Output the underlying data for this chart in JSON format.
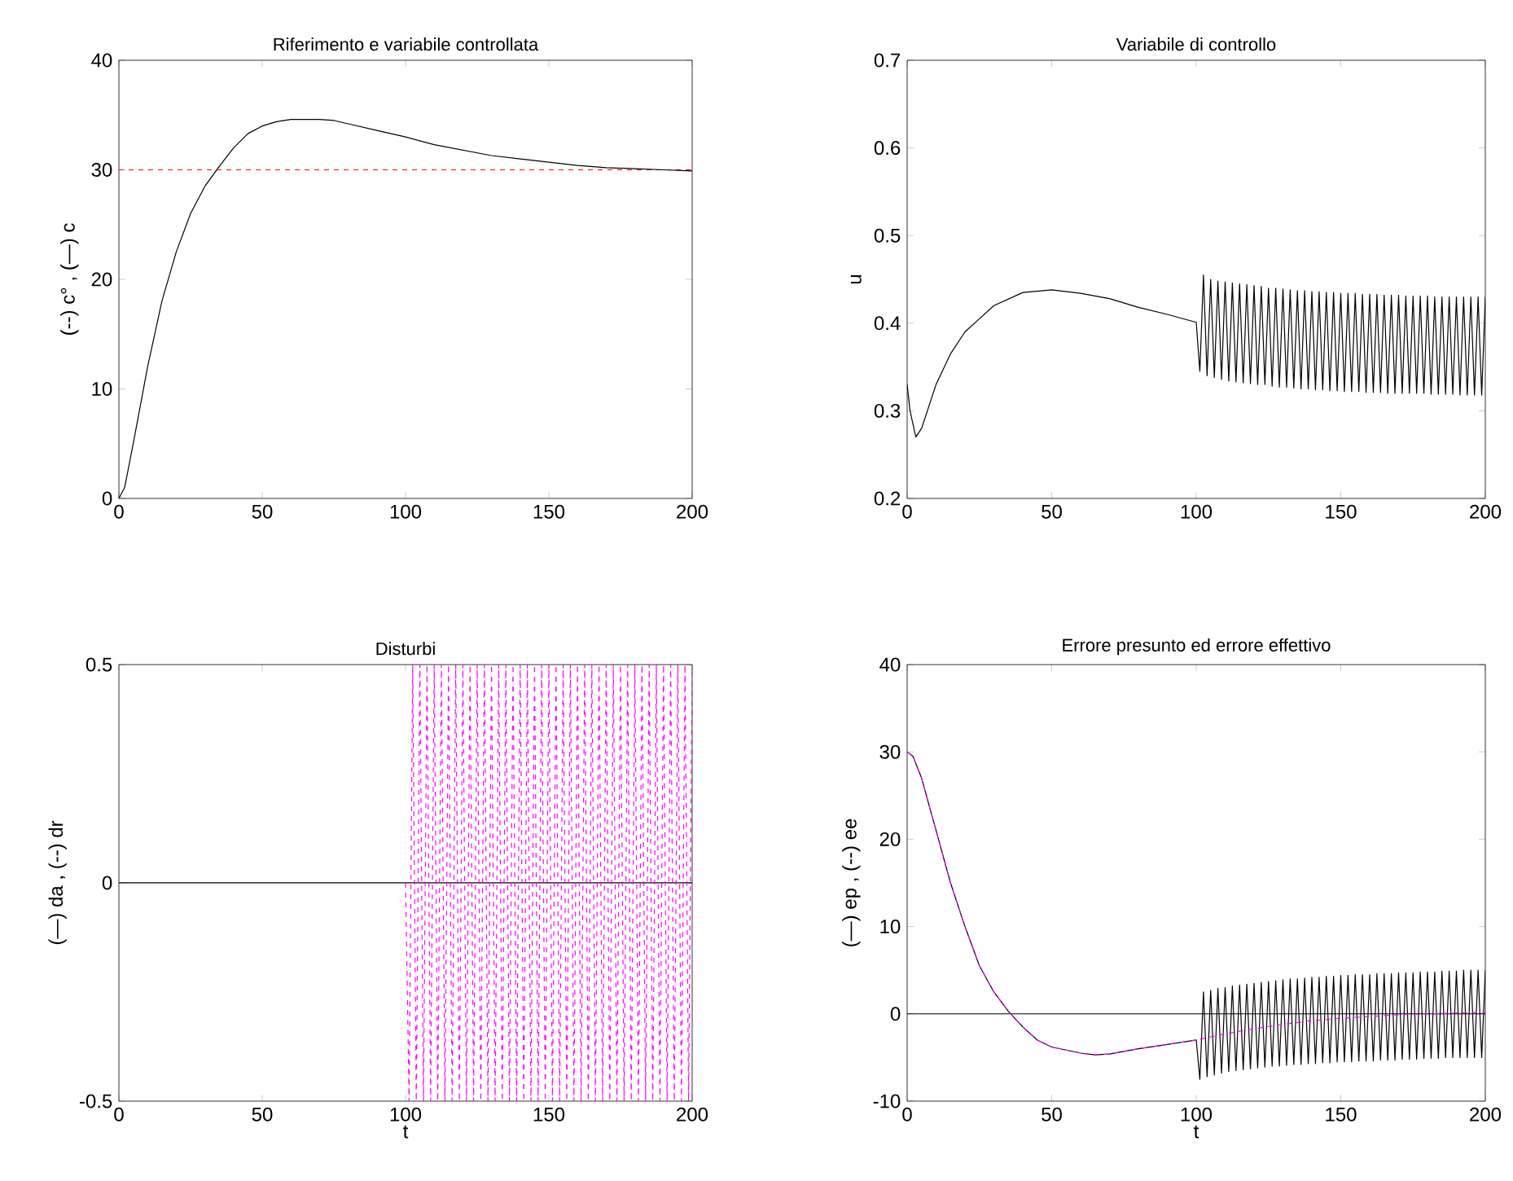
{
  "chart_data": [
    {
      "type": "line",
      "title": "Riferimento e variabile controllata",
      "ylabel": "(--) c° ,  (—) c",
      "xlim": [
        0,
        200
      ],
      "ylim": [
        0,
        40
      ],
      "xticks": [
        0,
        50,
        100,
        150,
        200
      ],
      "yticks": [
        0,
        10,
        20,
        30,
        40
      ],
      "series": [
        {
          "color": "#ff0000",
          "line_style": "dashed",
          "x": [
            0,
            200
          ],
          "values": [
            30,
            30
          ]
        },
        {
          "color": "#000000",
          "line_style": "solid",
          "x": [
            0,
            2,
            5,
            10,
            15,
            20,
            25,
            30,
            35,
            40,
            45,
            50,
            55,
            60,
            70,
            75,
            80,
            90,
            100,
            110,
            120,
            130,
            140,
            150,
            160,
            170,
            180,
            190,
            200
          ],
          "values": [
            0,
            1,
            5,
            12,
            18,
            22.5,
            26,
            28.5,
            30.3,
            32,
            33.3,
            34,
            34.4,
            34.6,
            34.6,
            34.5,
            34.2,
            33.6,
            33,
            32.3,
            31.8,
            31.3,
            31,
            30.7,
            30.4,
            30.2,
            30.1,
            30,
            29.9
          ]
        }
      ]
    },
    {
      "type": "line",
      "title": "Variabile di controllo",
      "ylabel": "u",
      "xlim": [
        0,
        200
      ],
      "ylim": [
        0.2,
        0.7
      ],
      "xticks": [
        0,
        50,
        100,
        150,
        200
      ],
      "yticks": [
        0.2,
        0.3,
        0.4,
        0.5,
        0.6,
        0.7
      ],
      "series": [
        {
          "color": "#000000",
          "line_style": "solid",
          "x": [
            0,
            1,
            3,
            5,
            10,
            15,
            20,
            25,
            30,
            40,
            50,
            60,
            70,
            80,
            90,
            100,
            101.25,
            102.5,
            103.75,
            105,
            106.25,
            107.5,
            108.75,
            110,
            111.25,
            112.5,
            113.75,
            115,
            116.25,
            117.5,
            118.75,
            120,
            121.25,
            122.5,
            123.75,
            125,
            126.25,
            127.5,
            128.75,
            130,
            131.25,
            132.5,
            133.75,
            135,
            136.25,
            137.5,
            138.75,
            140,
            141.25,
            142.5,
            143.75,
            145,
            146.25,
            147.5,
            148.75,
            150,
            151.25,
            152.5,
            153.75,
            155,
            156.25,
            157.5,
            158.75,
            160,
            161.25,
            162.5,
            163.75,
            165,
            166.25,
            167.5,
            168.75,
            170,
            171.25,
            172.5,
            173.75,
            175,
            176.25,
            177.5,
            178.75,
            180,
            181.25,
            182.5,
            183.75,
            185,
            186.25,
            187.5,
            188.75,
            190,
            191.25,
            192.5,
            193.75,
            195,
            196.25,
            197.5,
            198.75,
            200
          ],
          "values": [
            0.33,
            0.3,
            0.27,
            0.28,
            0.33,
            0.365,
            0.39,
            0.405,
            0.42,
            0.435,
            0.438,
            0.434,
            0.428,
            0.418,
            0.41,
            0.401,
            0.345,
            0.455,
            0.34,
            0.45,
            0.338,
            0.448,
            0.336,
            0.447,
            0.334,
            0.446,
            0.333,
            0.445,
            0.332,
            0.444,
            0.331,
            0.443,
            0.33,
            0.442,
            0.33,
            0.44,
            0.328,
            0.44,
            0.327,
            0.439,
            0.327,
            0.438,
            0.326,
            0.437,
            0.325,
            0.437,
            0.325,
            0.436,
            0.324,
            0.436,
            0.324,
            0.435,
            0.323,
            0.435,
            0.323,
            0.434,
            0.322,
            0.434,
            0.322,
            0.434,
            0.322,
            0.433,
            0.321,
            0.433,
            0.321,
            0.433,
            0.321,
            0.432,
            0.32,
            0.432,
            0.32,
            0.432,
            0.32,
            0.431,
            0.32,
            0.431,
            0.32,
            0.431,
            0.32,
            0.431,
            0.319,
            0.43,
            0.319,
            0.43,
            0.319,
            0.43,
            0.319,
            0.43,
            0.318,
            0.43,
            0.318,
            0.43,
            0.318,
            0.43,
            0.318,
            0.43
          ]
        }
      ]
    },
    {
      "type": "line",
      "title": "Disturbi",
      "xlabel": "t",
      "ylabel": "(—) da ,  (--) dr",
      "xlim": [
        0,
        200
      ],
      "ylim": [
        -0.5,
        0.5
      ],
      "xticks": [
        0,
        50,
        100,
        150,
        200
      ],
      "yticks": [
        -0.5,
        0,
        0.5
      ],
      "series": [
        {
          "color": "#000000",
          "line_style": "solid",
          "x": [
            0,
            200
          ],
          "values": [
            0,
            0
          ]
        },
        {
          "color": "#ff00ff",
          "line_style": "dashed",
          "x": [
            100,
            101.25,
            102.5,
            103.75,
            105,
            106.25,
            107.5,
            108.75,
            110,
            111.25,
            112.5,
            113.75,
            115,
            116.25,
            117.5,
            118.75,
            120,
            121.25,
            122.5,
            123.75,
            125,
            126.25,
            127.5,
            128.75,
            130,
            131.25,
            132.5,
            133.75,
            135,
            136.25,
            137.5,
            138.75,
            140,
            141.25,
            142.5,
            143.75,
            145,
            146.25,
            147.5,
            148.75,
            150,
            151.25,
            152.5,
            153.75,
            155,
            156.25,
            157.5,
            158.75,
            160,
            161.25,
            162.5,
            163.75,
            165,
            166.25,
            167.5,
            168.75,
            170,
            171.25,
            172.5,
            173.75,
            175,
            176.25,
            177.5,
            178.75,
            180,
            181.25,
            182.5,
            183.75,
            185,
            186.25,
            187.5,
            188.75,
            190,
            191.25,
            192.5,
            193.75,
            195,
            196.25,
            197.5,
            198.75,
            200
          ],
          "values": [
            0,
            -0.5,
            0.5,
            -0.5,
            0.5,
            -0.5,
            0.5,
            -0.5,
            0.5,
            -0.5,
            0.5,
            -0.5,
            0.5,
            -0.5,
            0.5,
            -0.5,
            0.5,
            -0.5,
            0.5,
            -0.5,
            0.5,
            -0.5,
            0.5,
            -0.5,
            0.5,
            -0.5,
            0.5,
            -0.5,
            0.5,
            -0.5,
            0.5,
            -0.5,
            0.5,
            -0.5,
            0.5,
            -0.5,
            0.5,
            -0.5,
            0.5,
            -0.5,
            0.5,
            -0.5,
            0.5,
            -0.5,
            0.5,
            -0.5,
            0.5,
            -0.5,
            0.5,
            -0.5,
            0.5,
            -0.5,
            0.5,
            -0.5,
            0.5,
            -0.5,
            0.5,
            -0.5,
            0.5,
            -0.5,
            0.5,
            -0.5,
            0.5,
            -0.5,
            0.5,
            -0.5,
            0.5,
            -0.5,
            0.5,
            -0.5,
            0.5,
            -0.5,
            0.5,
            -0.5,
            0.5,
            -0.5,
            0.5,
            -0.5,
            0.5,
            -0.5,
            0.5
          ]
        }
      ]
    },
    {
      "type": "line",
      "title": "Errore presunto ed errore effettivo",
      "xlabel": "t",
      "ylabel": "(—) ep ,  (--) ee",
      "xlim": [
        0,
        200
      ],
      "ylim": [
        -10,
        40
      ],
      "xticks": [
        0,
        50,
        100,
        150,
        200
      ],
      "yticks": [
        -10,
        0,
        10,
        20,
        30,
        40
      ],
      "ref_lines": [
        {
          "axis": "y",
          "value": 0,
          "color": "#000000",
          "line_style": "solid"
        }
      ],
      "series": [
        {
          "color": "#000000",
          "line_style": "solid",
          "x": [
            0,
            2,
            5,
            10,
            15,
            20,
            25,
            30,
            35,
            40,
            45,
            50,
            60,
            65,
            70,
            80,
            90,
            100,
            101.25,
            102.5,
            103.75,
            105,
            106.25,
            107.5,
            108.75,
            110,
            111.25,
            112.5,
            113.75,
            115,
            116.25,
            117.5,
            118.75,
            120,
            121.25,
            122.5,
            123.75,
            125,
            126.25,
            127.5,
            128.75,
            130,
            131.25,
            132.5,
            133.75,
            135,
            136.25,
            137.5,
            138.75,
            140,
            141.25,
            142.5,
            143.75,
            145,
            146.25,
            147.5,
            148.75,
            150,
            151.25,
            152.5,
            153.75,
            155,
            156.25,
            157.5,
            158.75,
            160,
            161.25,
            162.5,
            163.75,
            165,
            166.25,
            167.5,
            168.75,
            170,
            171.25,
            172.5,
            173.75,
            175,
            176.25,
            177.5,
            178.75,
            180,
            181.25,
            182.5,
            183.75,
            185,
            186.25,
            187.5,
            188.75,
            190,
            191.25,
            192.5,
            193.75,
            195,
            196.25,
            197.5,
            198.75,
            200
          ],
          "values": [
            30,
            29.5,
            27,
            21,
            15,
            10,
            5.5,
            2.5,
            0.3,
            -1.5,
            -3,
            -3.8,
            -4.5,
            -4.7,
            -4.6,
            -4,
            -3.5,
            -3,
            -7.5,
            2.5,
            -7.2,
            2.7,
            -7,
            2.9,
            -6.8,
            3,
            -6.6,
            3.2,
            -6.5,
            3.3,
            -6.4,
            3.4,
            -6.3,
            3.5,
            -6.2,
            3.6,
            -6.1,
            3.7,
            -6,
            3.8,
            -6,
            3.9,
            -5.9,
            4,
            -5.8,
            4,
            -5.8,
            4.1,
            -5.7,
            4.2,
            -5.7,
            4.2,
            -5.6,
            4.3,
            -5.6,
            4.3,
            -5.5,
            4.4,
            -5.5,
            4.4,
            -5.5,
            4.5,
            -5.4,
            4.5,
            -5.4,
            4.5,
            -5.4,
            4.6,
            -5.3,
            4.6,
            -5.3,
            4.6,
            -5.3,
            4.7,
            -5.2,
            4.7,
            -5.2,
            4.7,
            -5.2,
            4.8,
            -5.1,
            4.8,
            -5.1,
            4.8,
            -5.1,
            4.9,
            -5,
            4.9,
            -5,
            4.9,
            -5,
            5,
            -5,
            5,
            -5,
            5,
            -5,
            5
          ]
        },
        {
          "color": "#ff00ff",
          "line_style": "dashed",
          "x": [
            0,
            2,
            5,
            10,
            15,
            20,
            25,
            30,
            35,
            40,
            45,
            50,
            60,
            65,
            70,
            80,
            90,
            100,
            110,
            120,
            130,
            140,
            150,
            160,
            170,
            180,
            190,
            200
          ],
          "values": [
            30,
            29.5,
            27,
            21,
            15,
            10,
            5.5,
            2.5,
            0.3,
            -1.5,
            -3,
            -3.8,
            -4.5,
            -4.7,
            -4.6,
            -4,
            -3.5,
            -3,
            -2.3,
            -1.7,
            -1.2,
            -0.8,
            -0.5,
            -0.3,
            -0.1,
            0,
            0.1,
            0.2
          ]
        }
      ]
    }
  ]
}
